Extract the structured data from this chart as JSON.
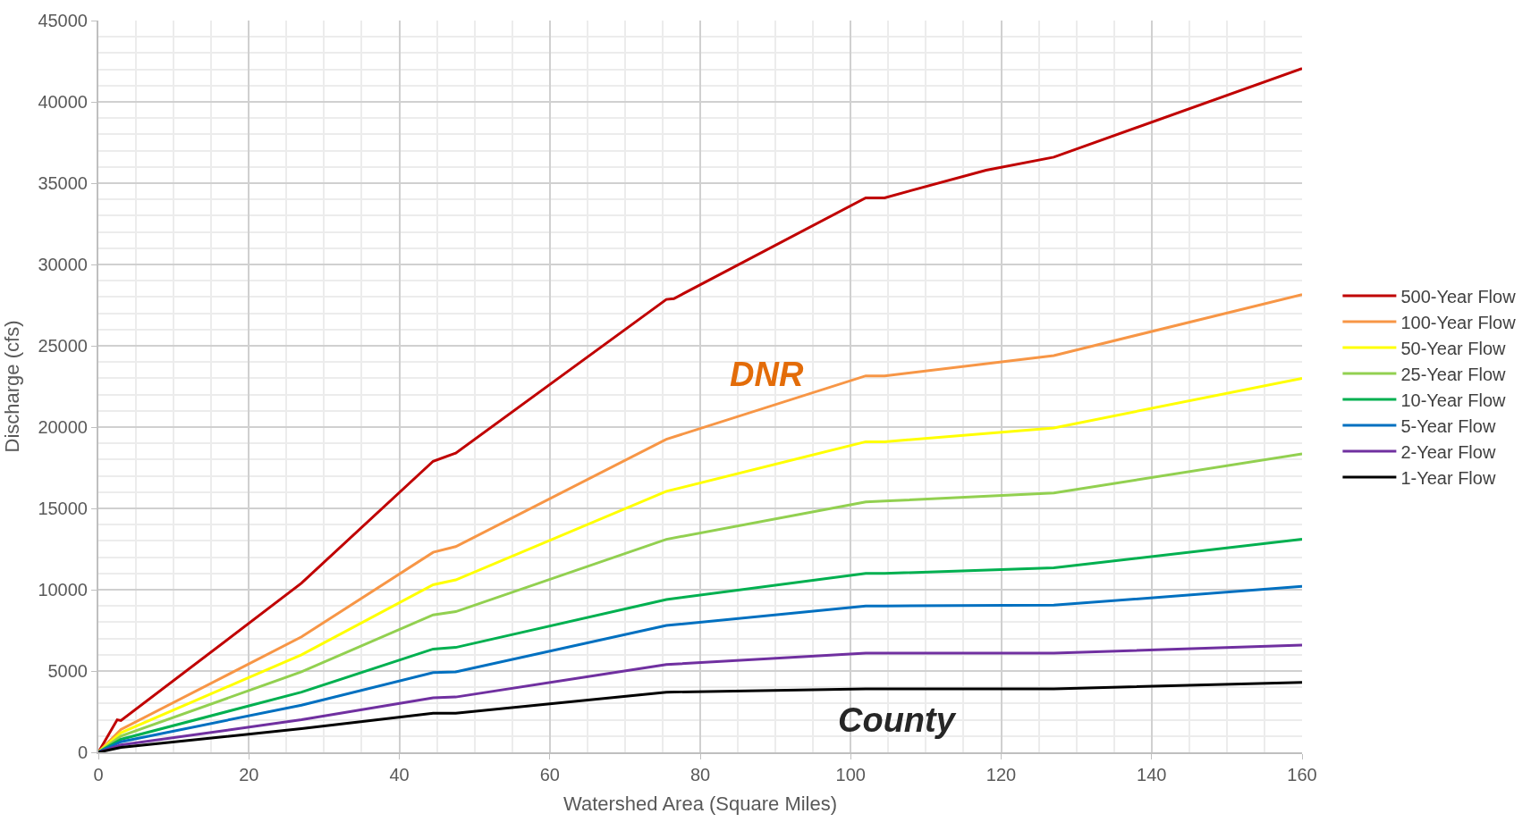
{
  "chart_data": {
    "type": "line",
    "xlabel": "Watershed Area (Square Miles)",
    "ylabel": "Discharge (cfs)",
    "xlim": [
      0,
      160
    ],
    "xticks": [
      0,
      20,
      40,
      60,
      80,
      100,
      120,
      140,
      160
    ],
    "ylim": [
      0,
      45000
    ],
    "yticks": [
      0,
      5000,
      10000,
      15000,
      20000,
      25000,
      30000,
      35000,
      40000,
      45000
    ],
    "grid": true,
    "legend": "right",
    "marker": "none",
    "line_style": "solid",
    "x": [
      0,
      3,
      27,
      44.5,
      47.5,
      75.5,
      102,
      104.5,
      127,
      160
    ],
    "series": [
      {
        "name": "500-Year Flow",
        "color": "#c00000",
        "x": [
          0,
          2.5,
          3,
          27,
          44.5,
          47.5,
          75.5,
          76.5,
          102,
          104.5,
          118,
          127,
          160
        ],
        "values": [
          0,
          2000,
          1950,
          10400,
          17900,
          18400,
          27850,
          27900,
          34100,
          34100,
          35800,
          36600,
          42050
        ]
      },
      {
        "name": "100-Year Flow",
        "color": "#f79646",
        "values": [
          0,
          1400,
          7100,
          12300,
          12650,
          19250,
          23150,
          23150,
          24400,
          28150
        ]
      },
      {
        "name": "50-Year Flow",
        "color": "#ffff00",
        "values": [
          0,
          1200,
          6000,
          10300,
          10600,
          16050,
          19100,
          19100,
          19950,
          23000
        ]
      },
      {
        "name": "25-Year Flow",
        "color": "#92d050",
        "values": [
          0,
          1000,
          4950,
          8450,
          8650,
          13100,
          15400,
          15450,
          15950,
          18350
        ]
      },
      {
        "name": "10-Year Flow",
        "color": "#00b050",
        "values": [
          0,
          800,
          3700,
          6350,
          6450,
          9400,
          11000,
          11000,
          11350,
          13100
        ]
      },
      {
        "name": "5-Year Flow",
        "color": "#0070c0",
        "values": [
          0,
          650,
          2900,
          4900,
          4950,
          7800,
          9000,
          9000,
          9050,
          10200
        ]
      },
      {
        "name": "2-Year Flow",
        "color": "#7030a0",
        "values": [
          0,
          450,
          2000,
          3350,
          3400,
          5400,
          6100,
          6100,
          6100,
          6600
        ]
      },
      {
        "name": "1-Year Flow",
        "color": "#000000",
        "values": [
          0,
          300,
          1450,
          2400,
          2400,
          3700,
          3900,
          3900,
          3900,
          4300
        ]
      }
    ],
    "annotations": [
      "DNR",
      "County"
    ]
  }
}
